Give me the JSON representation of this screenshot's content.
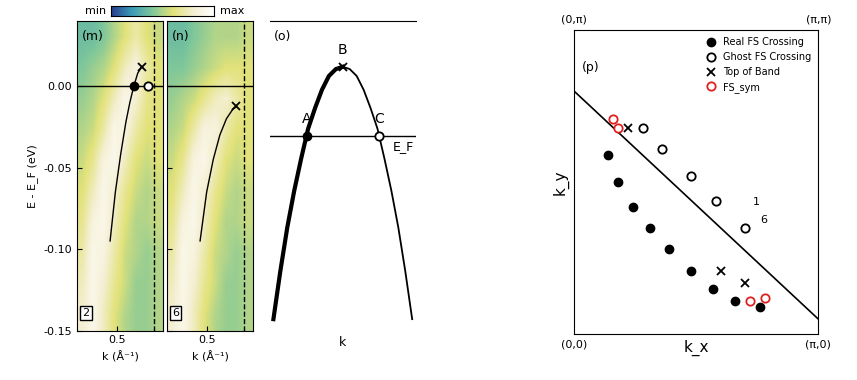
{
  "chart_data": [
    {
      "type": "heatmap",
      "panel": "(m)",
      "cut_label": "2",
      "xlabel": "k (Å⁻¹)",
      "ylabel": "E - E_F (eV)",
      "xlim": [
        0.2,
        0.85
      ],
      "ylim": [
        -0.15,
        0.04
      ],
      "xticks": [
        0.5
      ],
      "yticks": [
        {
          "value": 0,
          "label": "0.00"
        },
        {
          "value": -0.05,
          "label": "-0.05"
        },
        {
          "value": -0.1,
          "label": "-0.10"
        },
        {
          "value": -0.15,
          "label": "-0.15"
        }
      ],
      "color_range": [
        0,
        1
      ],
      "color_ticks": [
        {
          "value": 0,
          "label": "min"
        },
        {
          "value": 1,
          "label": "max"
        }
      ],
      "cells": [
        [
          0.35,
          0.35,
          0.4,
          0.5,
          0.6,
          0.7,
          0.6,
          0.55
        ],
        [
          0.4,
          0.45,
          0.5,
          0.6,
          0.75,
          0.85,
          0.7,
          0.6
        ],
        [
          0.45,
          0.5,
          0.6,
          0.75,
          0.9,
          0.8,
          0.65,
          0.6
        ],
        [
          0.5,
          0.55,
          0.7,
          0.9,
          0.85,
          0.7,
          0.6,
          0.6
        ],
        [
          0.55,
          0.65,
          0.85,
          0.9,
          0.75,
          0.6,
          0.55,
          0.6
        ],
        [
          0.6,
          0.75,
          0.9,
          0.8,
          0.65,
          0.55,
          0.5,
          0.55
        ],
        [
          0.65,
          0.85,
          0.9,
          0.75,
          0.6,
          0.5,
          0.5,
          0.55
        ],
        [
          0.7,
          0.9,
          0.85,
          0.7,
          0.55,
          0.5,
          0.45,
          0.5
        ],
        [
          0.75,
          0.9,
          0.8,
          0.65,
          0.55,
          0.45,
          0.45,
          0.5
        ],
        [
          0.8,
          0.9,
          0.75,
          0.6,
          0.5,
          0.45,
          0.45,
          0.5
        ]
      ],
      "ef_line": 0,
      "vline": 0.78,
      "x": [
        0.45,
        0.49,
        0.53,
        0.57,
        0.6,
        0.63,
        0.66,
        0.69
      ],
      "values": [
        -0.095,
        -0.065,
        -0.042,
        -0.022,
        -0.01,
        0.0,
        0.008,
        0.012
      ],
      "points": [
        {
          "x": 0.63,
          "y": 0.0,
          "marker": "filled_circle"
        },
        {
          "x": 0.74,
          "y": 0.0,
          "marker": "open_circle"
        },
        {
          "x": 0.69,
          "y": 0.012,
          "marker": "x"
        }
      ]
    },
    {
      "type": "heatmap",
      "panel": "(n)",
      "cut_label": "6",
      "xlabel": "k (Å⁻¹)",
      "tick_labels": "x",
      "xlim": [
        0.2,
        0.85
      ],
      "ylim": [
        -0.15,
        0.04
      ],
      "xticks": [
        0.5
      ],
      "yticks": [
        0,
        -0.05,
        -0.1,
        -0.15
      ],
      "cells": [
        [
          0.35,
          0.35,
          0.4,
          0.45,
          0.5,
          0.5,
          0.5,
          0.55
        ],
        [
          0.4,
          0.4,
          0.45,
          0.5,
          0.55,
          0.6,
          0.6,
          0.6
        ],
        [
          0.45,
          0.5,
          0.55,
          0.65,
          0.75,
          0.8,
          0.7,
          0.6
        ],
        [
          0.5,
          0.55,
          0.7,
          0.85,
          0.85,
          0.7,
          0.6,
          0.6
        ],
        [
          0.55,
          0.65,
          0.85,
          0.9,
          0.75,
          0.6,
          0.55,
          0.6
        ],
        [
          0.6,
          0.75,
          0.9,
          0.8,
          0.65,
          0.55,
          0.5,
          0.55
        ],
        [
          0.65,
          0.85,
          0.9,
          0.75,
          0.6,
          0.5,
          0.5,
          0.55
        ],
        [
          0.7,
          0.9,
          0.85,
          0.7,
          0.55,
          0.5,
          0.45,
          0.5
        ],
        [
          0.75,
          0.9,
          0.8,
          0.65,
          0.55,
          0.45,
          0.45,
          0.5
        ],
        [
          0.8,
          0.9,
          0.75,
          0.6,
          0.5,
          0.45,
          0.45,
          0.5
        ]
      ],
      "ef_line": 0,
      "vline": 0.78,
      "x": [
        0.45,
        0.5,
        0.55,
        0.6,
        0.65,
        0.7,
        0.72
      ],
      "values": [
        -0.095,
        -0.065,
        -0.045,
        -0.03,
        -0.02,
        -0.014,
        -0.013
      ],
      "points": [
        {
          "x": 0.72,
          "y": -0.012,
          "marker": "x"
        }
      ]
    },
    {
      "type": "line",
      "panel": "(o)",
      "xlabel": "k",
      "tick_labels": false,
      "xlim": [
        -1.05,
        1.05
      ],
      "ylim": [
        -0.15,
        1.2
      ],
      "x": [
        -1.0,
        -0.9,
        -0.8,
        -0.7,
        -0.6,
        -0.5,
        -0.4,
        -0.3,
        -0.2,
        -0.1,
        0.0,
        0.1,
        0.2,
        0.3,
        0.4,
        0.5,
        0.6,
        0.7,
        0.8,
        0.9,
        1.0
      ],
      "values": [
        -0.1,
        0.11,
        0.3,
        0.46,
        0.6,
        0.73,
        0.82,
        0.9,
        0.96,
        0.99,
        1.0,
        0.99,
        0.96,
        0.9,
        0.82,
        0.73,
        0.6,
        0.46,
        0.3,
        0.11,
        -0.1
      ],
      "ef_line": 0.7,
      "ef_label": "E_F",
      "points": [
        {
          "label": "A",
          "x": -0.52,
          "y": 0.7,
          "marker": "filled_circle"
        },
        {
          "label": "B",
          "x": 0.0,
          "y": 1.0,
          "marker": "x"
        },
        {
          "label": "C",
          "x": 0.52,
          "y": 0.7,
          "marker": "open_circle"
        }
      ]
    },
    {
      "type": "scatter",
      "panel": "(p)",
      "xlabel": "k_x",
      "ylabel": "k_y",
      "tick_labels": false,
      "xlim": [
        0,
        1
      ],
      "ylim": [
        0,
        1
      ],
      "legend": "upper right",
      "series": [
        {
          "name": "Real FS Crossing",
          "color": "#000000",
          "marker": "filled_circle",
          "x": [
            0.14,
            0.18,
            0.24,
            0.31,
            0.39,
            0.48,
            0.57,
            0.66,
            0.76
          ],
          "values": [
            0.59,
            0.5,
            0.42,
            0.35,
            0.28,
            0.21,
            0.15,
            0.11,
            0.09
          ]
        },
        {
          "name": "Ghost FS Crossing",
          "color": "#000000",
          "marker": "open_circle",
          "x": [
            0.28,
            0.36,
            0.48,
            0.58,
            0.7
          ],
          "values": [
            0.68,
            0.61,
            0.52,
            0.44,
            0.35
          ]
        },
        {
          "name": "Top of Band",
          "color": "#000000",
          "marker": "x",
          "x": [
            0.22,
            0.6,
            0.7
          ],
          "values": [
            0.68,
            0.21,
            0.17
          ]
        },
        {
          "name": "FS_sym",
          "color": "#e02020",
          "marker": "open_circle",
          "x": [
            0.16,
            0.18,
            0.72,
            0.78
          ],
          "values": [
            0.71,
            0.68,
            0.11,
            0.12
          ]
        }
      ],
      "lines": [
        {
          "x": [
            0,
            1
          ],
          "values": [
            0.8,
            0.05
          ]
        }
      ],
      "corners": [
        {
          "label": "(0,0)",
          "x": 0,
          "y": 0
        },
        {
          "label": "(π,0)",
          "x": 1,
          "y": 0
        },
        {
          "label": "(0,π)",
          "x": 0,
          "y": 1
        },
        {
          "label": "(π,π)",
          "x": 1,
          "y": 1
        }
      ],
      "annotations": [
        {
          "text": "1",
          "x": 0.73,
          "y": 0.42
        },
        {
          "text": "6",
          "x": 0.76,
          "y": 0.36
        }
      ]
    }
  ]
}
